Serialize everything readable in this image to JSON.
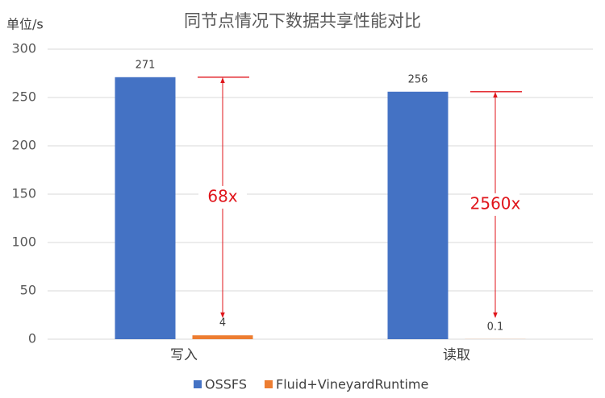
{
  "chart_data": {
    "type": "bar",
    "title": "同节点情况下数据共享性能对比",
    "y_label": "单位/s",
    "categories": [
      "写入",
      "读取"
    ],
    "series": [
      {
        "name": "OSSFS",
        "color": "#4472c4",
        "values": [
          271,
          256
        ]
      },
      {
        "name": "Fluid+VineyardRuntime",
        "color": "#ed7d31",
        "values": [
          4,
          0.1
        ]
      }
    ],
    "annotations": [
      "68x",
      "2560x"
    ],
    "ylim": [
      0,
      300
    ],
    "yticks": [
      0,
      50,
      100,
      150,
      200,
      250,
      300
    ],
    "grid": true,
    "legend": "bottom"
  }
}
